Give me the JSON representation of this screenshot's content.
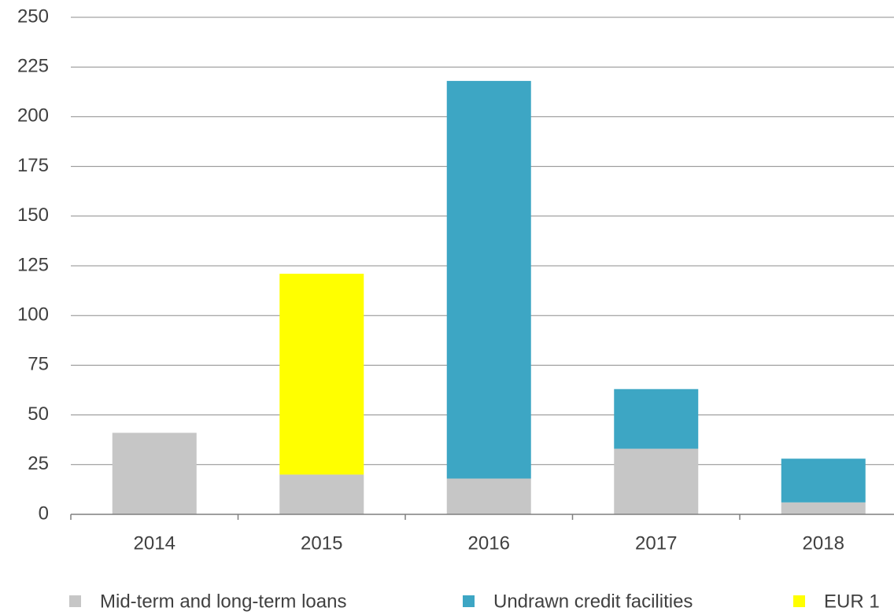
{
  "chart_data": {
    "type": "stacked_bar",
    "categories": [
      "2014",
      "2015",
      "2016",
      "2017",
      "2018"
    ],
    "series": [
      {
        "name": "Mid-term and long-term loans",
        "color": "#c6c6c6",
        "values": [
          41,
          20,
          18,
          33,
          6
        ]
      },
      {
        "name": "Undrawn credit facilities",
        "color": "#3da6c4",
        "values": [
          null,
          null,
          200,
          30,
          22
        ]
      },
      {
        "name": "EUR 1",
        "color": "#ffff00",
        "values": [
          null,
          101,
          null,
          null,
          null
        ]
      }
    ],
    "ylim": [
      0,
      250
    ],
    "yticks": [
      0,
      25,
      50,
      75,
      100,
      125,
      150,
      175,
      200,
      225,
      250
    ],
    "grid": true,
    "legend": "bottom"
  }
}
